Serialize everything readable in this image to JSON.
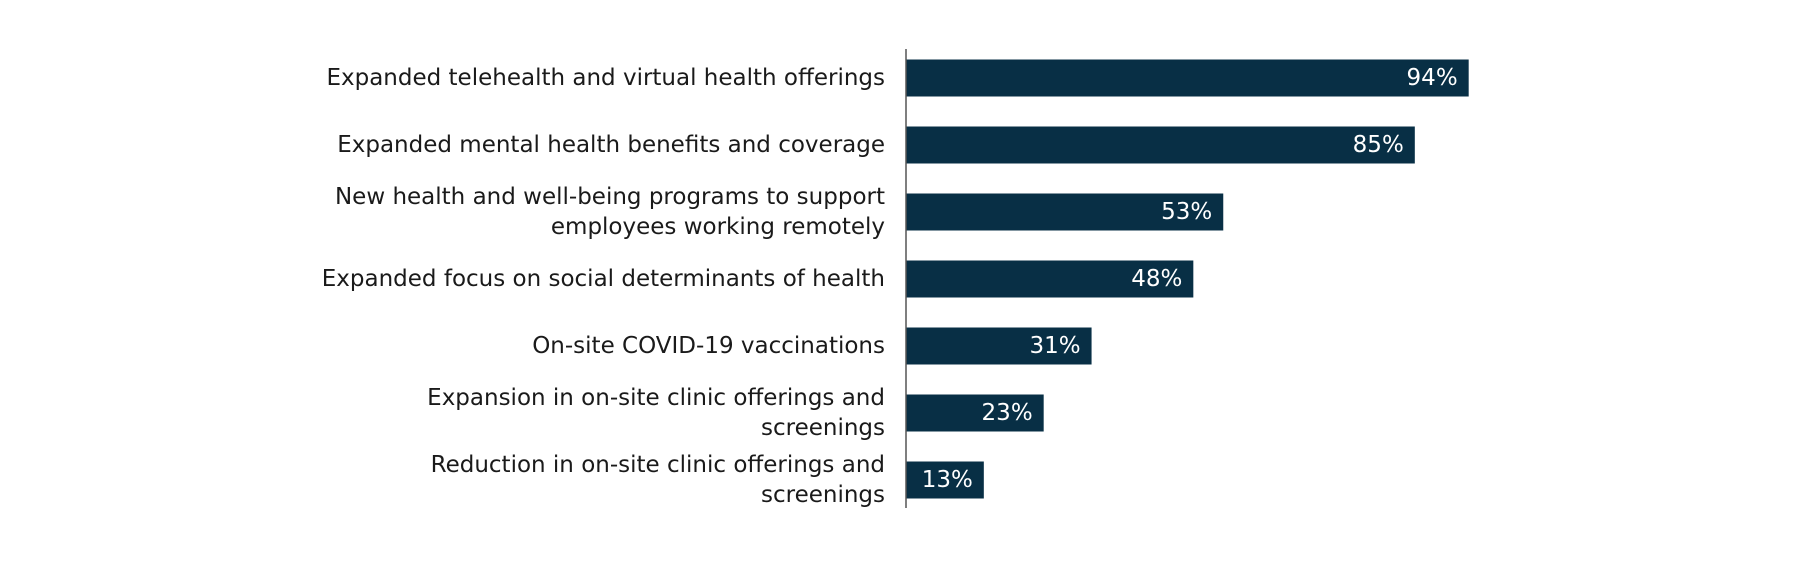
{
  "colors": {
    "bar": "#082f45",
    "axis": "#555555",
    "label_text": "#1a1a1a",
    "value_text": "#ffffff",
    "background": "#ffffff"
  },
  "chart_data": {
    "type": "bar",
    "orientation": "horizontal",
    "title": "",
    "xlabel": "",
    "ylabel": "",
    "xlim": [
      0,
      100
    ],
    "grid": false,
    "legend": "none",
    "categories": [
      [
        "Expanded telehealth and virtual health offerings"
      ],
      [
        "Expanded mental health benefits and coverage"
      ],
      [
        "New health and well-being programs to support",
        "employees working remotely"
      ],
      [
        "Expanded focus on social determinants of health"
      ],
      [
        "On-site COVID-19 vaccinations"
      ],
      [
        "Expansion in on-site clinic offerings and",
        "screenings"
      ],
      [
        "Reduction in on-site clinic offerings and",
        "screenings"
      ]
    ],
    "values": [
      94,
      85,
      53,
      48,
      31,
      23,
      13
    ],
    "value_labels": [
      "94%",
      "85%",
      "53%",
      "48%",
      "31%",
      "23%",
      "13%"
    ]
  }
}
